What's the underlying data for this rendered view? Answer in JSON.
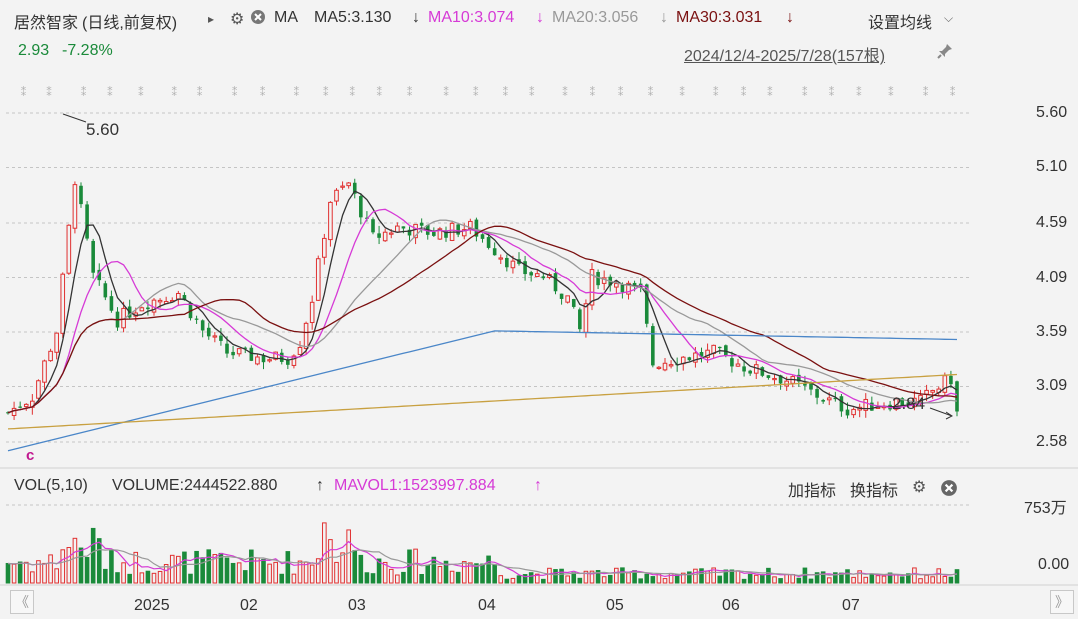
{
  "header": {
    "stock_name": "居然智家",
    "period_label": "(日线,前复权)",
    "expand_glyph": "▸",
    "ma_label": "MA",
    "ma5": "MA5:3.130",
    "ma10": "MA10:3.074",
    "ma20": "MA20:3.056",
    "ma30": "MA30:3.031",
    "arrow": "↓",
    "settings": "设置均线",
    "settings_caret": "⌵",
    "price": "2.93",
    "change": "-7.28%",
    "range": "2024/12/4-2025/7/28(157根)"
  },
  "volume_header": {
    "label": "VOL(5,10)",
    "volume": "VOLUME:2444522.880",
    "up_arrow": "↑",
    "mavol": "MAVOL1:1523997.884",
    "add_indicator": "加指标",
    "switch_indicator": "换指标"
  },
  "colors": {
    "up": "#e03030",
    "down": "#1a8a3a",
    "ma5": "#333333",
    "ma10": "#d63ad6",
    "ma20": "#999999",
    "ma30": "#7a1010",
    "ma60": "#4a86c8",
    "ma120": "#c8a040",
    "background": "#f3f3f3"
  },
  "chart_data": {
    "type": "candlestick",
    "price_axis": {
      "ticks": [
        "5.60",
        "5.10",
        "4.59",
        "4.09",
        "3.59",
        "3.09",
        "2.58"
      ],
      "range": [
        2.43,
        5.8
      ]
    },
    "volume_axis": {
      "ticks": [
        "753万",
        "0.00"
      ]
    },
    "x_ticks": [
      "2025",
      "02",
      "03",
      "04",
      "05",
      "06",
      "07"
    ],
    "annotations": {
      "high_label": "5.60",
      "low_label": "2.84"
    },
    "markers": {
      "bottom_left": "c"
    },
    "candles_count": 157
  },
  "nav": {
    "left": "《",
    "right": "》"
  }
}
